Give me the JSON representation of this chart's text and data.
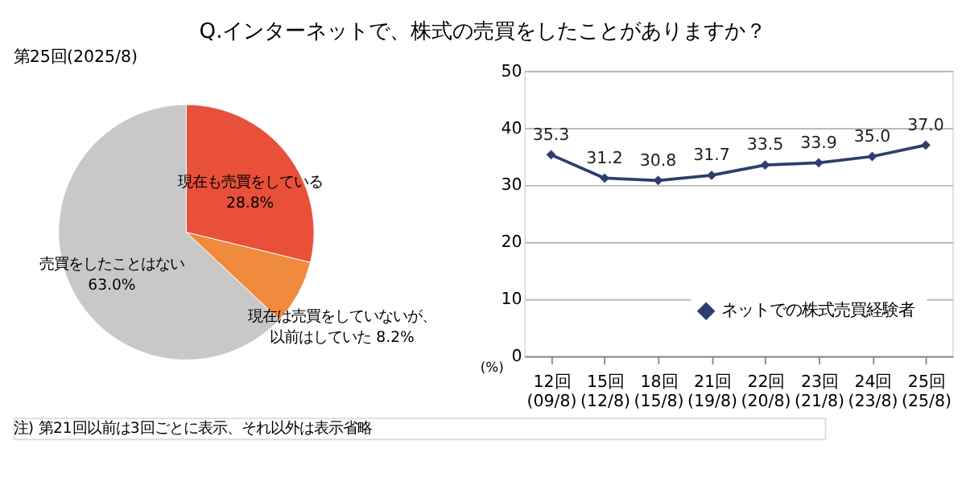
{
  "chart_data": [
    {
      "type": "pie",
      "title": "Q.インターネットで、株式の売買をしたことがありますか？",
      "subtitle": "第25回(2025/8)",
      "categories": [
        "現在も売買をしている",
        "現在は売買をしていないが、以前はしていた",
        "売買をしたことはない"
      ],
      "values": [
        28.8,
        8.2,
        63.0
      ],
      "value_labels": [
        "28.8%",
        "8.2%",
        "63.0%"
      ],
      "colors": [
        "#e8503a",
        "#f08a3c",
        "#c8c8c8"
      ],
      "legend": false
    },
    {
      "type": "line",
      "ylabel": "(%)",
      "categories": [
        "12回\n(09/8)",
        "15回\n(12/8)",
        "18回\n(15/8)",
        "21回\n(19/8)",
        "22回\n(20/8)",
        "23回\n(21/8)",
        "24回\n(23/8)",
        "25回\n(25/8)"
      ],
      "series": [
        {
          "name": "ネットでの株式売買経験者",
          "color": "#2e3e6e",
          "values": [
            35.3,
            31.2,
            30.8,
            31.7,
            33.5,
            33.9,
            35.0,
            37.0
          ],
          "value_labels": [
            "35.3",
            "31.2",
            "30.8",
            "31.7",
            "33.5",
            "33.9",
            "35.0",
            "37.0"
          ]
        }
      ],
      "ylim": [
        0,
        50
      ],
      "yticks": [
        0,
        10,
        20,
        30,
        40,
        50
      ],
      "grid": "y",
      "legend": "bottom right",
      "marker": "diamond",
      "annotations": [
        "注) 第21回以前は3回ごとに表示、それ以外は表示省略"
      ]
    }
  ]
}
